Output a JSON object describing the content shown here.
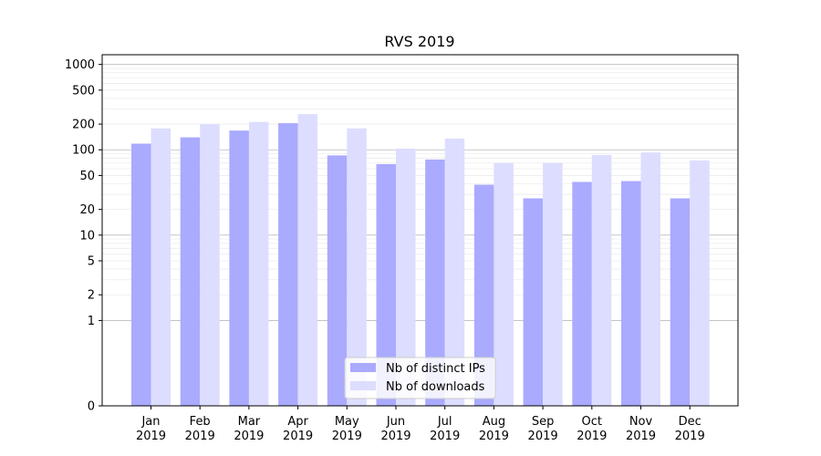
{
  "chart_data": {
    "type": "bar",
    "title": "RVS 2019",
    "xlabel": "",
    "ylabel": "",
    "yscale": "symlog",
    "ylim": [
      0,
      1300
    ],
    "yticks": [
      0,
      1,
      2,
      5,
      10,
      20,
      50,
      100,
      200,
      500,
      1000
    ],
    "grid": true,
    "legend_position": "lower-center",
    "categories": [
      [
        "Jan",
        "2019"
      ],
      [
        "Feb",
        "2019"
      ],
      [
        "Mar",
        "2019"
      ],
      [
        "Apr",
        "2019"
      ],
      [
        "May",
        "2019"
      ],
      [
        "Jun",
        "2019"
      ],
      [
        "Jul",
        "2019"
      ],
      [
        "Aug",
        "2019"
      ],
      [
        "Sep",
        "2019"
      ],
      [
        "Oct",
        "2019"
      ],
      [
        "Nov",
        "2019"
      ],
      [
        "Dec",
        "2019"
      ]
    ],
    "series": [
      {
        "name": "Nb of distinct IPs",
        "color": "#aaaaff",
        "values": [
          118,
          140,
          168,
          205,
          86,
          68,
          77,
          39,
          27,
          42,
          43,
          27
        ]
      },
      {
        "name": "Nb of downloads",
        "color": "#ddddff",
        "values": [
          178,
          200,
          212,
          262,
          178,
          103,
          135,
          70,
          70,
          87,
          93,
          75
        ]
      }
    ]
  }
}
